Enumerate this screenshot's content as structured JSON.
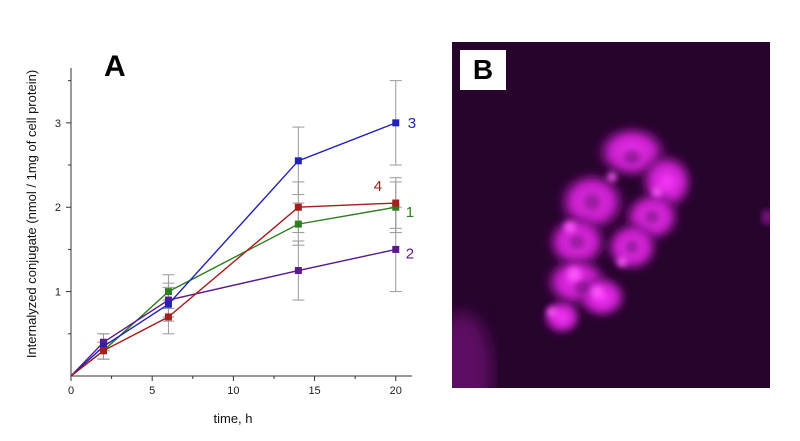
{
  "panels": {
    "a_label": "A",
    "b_label": "B"
  },
  "chart_data": {
    "type": "line",
    "title": "",
    "xlabel": "time, h",
    "ylabel": "Internalyzed conjugate (nmol / 1mg of cell protein)",
    "xlim": [
      0,
      21
    ],
    "ylim": [
      0,
      3.65
    ],
    "x_ticks": [
      0,
      5,
      10,
      15,
      20
    ],
    "y_ticks": [
      1,
      2,
      3
    ],
    "grid": false,
    "series": [
      {
        "name": "1",
        "color": "#2e7d1e",
        "x": [
          0,
          2,
          6,
          14,
          20
        ],
        "y": [
          0,
          0.3,
          1.0,
          1.8,
          2.0
        ],
        "err": [
          0,
          0.1,
          0.2,
          0.25,
          0.3
        ]
      },
      {
        "name": "2",
        "color": "#5b1a8c",
        "x": [
          0,
          2,
          6,
          14,
          20
        ],
        "y": [
          0,
          0.4,
          0.9,
          1.25,
          1.5
        ],
        "err": [
          0,
          0.1,
          0.2,
          0.35,
          0.5
        ]
      },
      {
        "name": "3",
        "color": "#2222bb",
        "x": [
          0,
          2,
          6,
          14,
          20
        ],
        "y": [
          0,
          0.35,
          0.85,
          2.55,
          3.0
        ],
        "err": [
          0,
          0.15,
          0.2,
          0.4,
          0.5
        ]
      },
      {
        "name": "4",
        "color": "#a51d1d",
        "x": [
          0,
          2,
          6,
          14,
          20
        ],
        "y": [
          0,
          0.3,
          0.7,
          2.0,
          2.05
        ],
        "err": [
          0,
          0.1,
          0.2,
          0.3,
          0.3
        ]
      }
    ]
  }
}
